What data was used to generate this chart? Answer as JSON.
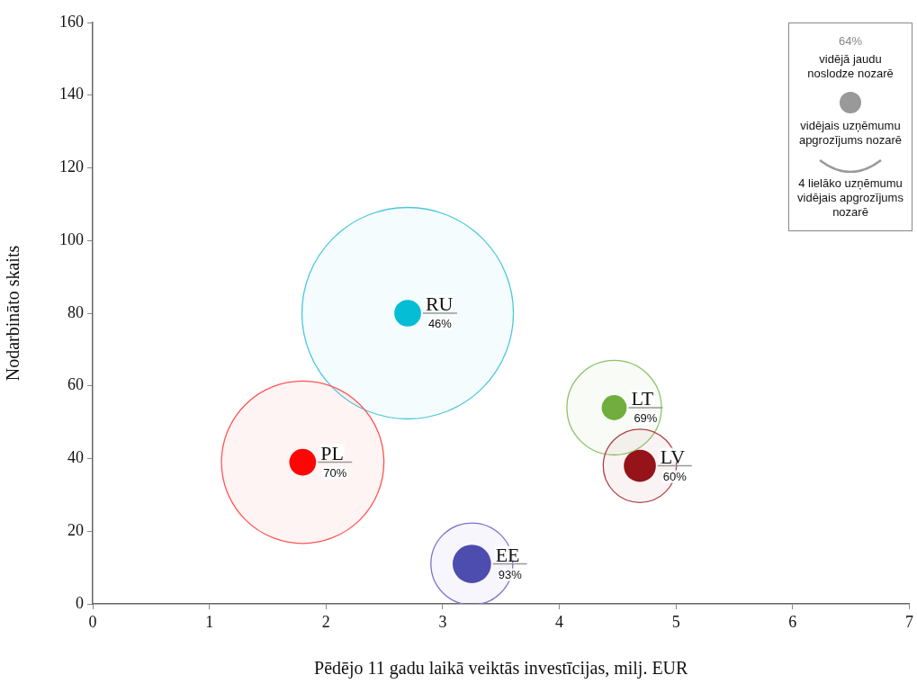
{
  "chart_data": {
    "type": "bubble",
    "xlabel": "Pēdējo 11 gadu laikā veiktās investīcijas, milj. EUR",
    "ylabel": "Nodarbināto skaits",
    "xlim": [
      0,
      7
    ],
    "xticks": [
      0,
      1,
      2,
      3,
      4,
      5,
      6,
      7
    ],
    "ylim": [
      0,
      160
    ],
    "yticks": [
      0,
      20,
      40,
      60,
      80,
      100,
      120,
      140,
      160
    ],
    "legend": "top right",
    "x": [
      2.7,
      1.8,
      4.47,
      4.69,
      3.25
    ],
    "series": [
      {
        "name": "4 lielāko uzņēmumu vidējais apgrozījums nozarē",
        "color": "#999999",
        "colors": [
          "#4cc8dc",
          "#ff5555",
          "#8cc36a",
          "#b04048",
          "#7b73cc"
        ],
        "values": [
          80,
          39,
          54,
          38,
          11
        ],
        "sizes": [
          1,
          0.59,
          0.2,
          0.12,
          0.15
        ]
      },
      {
        "name": "vidējais uzņēmumu apgrozījums nozarē",
        "color": "#999999",
        "colors": [
          "#00bcd4",
          "#ff0000",
          "#6fad3b",
          "#941016",
          "#4a4aad"
        ],
        "values": [
          80,
          39,
          54,
          38,
          11
        ],
        "sizes": [
          0.016,
          0.016,
          0.014,
          0.023,
          0.033
        ]
      }
    ],
    "annotations": [
      "64%",
      "vidējā jaudu noslodze nozarē",
      {
        "text": "RU",
        "x": 2.7,
        "y": 80
      },
      {
        "text": "46%",
        "x": 2.7,
        "y": 80
      },
      {
        "text": "PL",
        "x": 1.8,
        "y": 39
      },
      {
        "text": "70%",
        "x": 1.8,
        "y": 39
      },
      {
        "text": "LT",
        "x": 4.47,
        "y": 54
      },
      {
        "text": "69%",
        "x": 4.47,
        "y": 54
      },
      {
        "text": "LV",
        "x": 4.69,
        "y": 38
      },
      {
        "text": "60%",
        "x": 4.69,
        "y": 38
      },
      {
        "text": "EE",
        "x": 3.25,
        "y": 11
      },
      {
        "text": "93%",
        "x": 3.25,
        "y": 11
      }
    ]
  }
}
